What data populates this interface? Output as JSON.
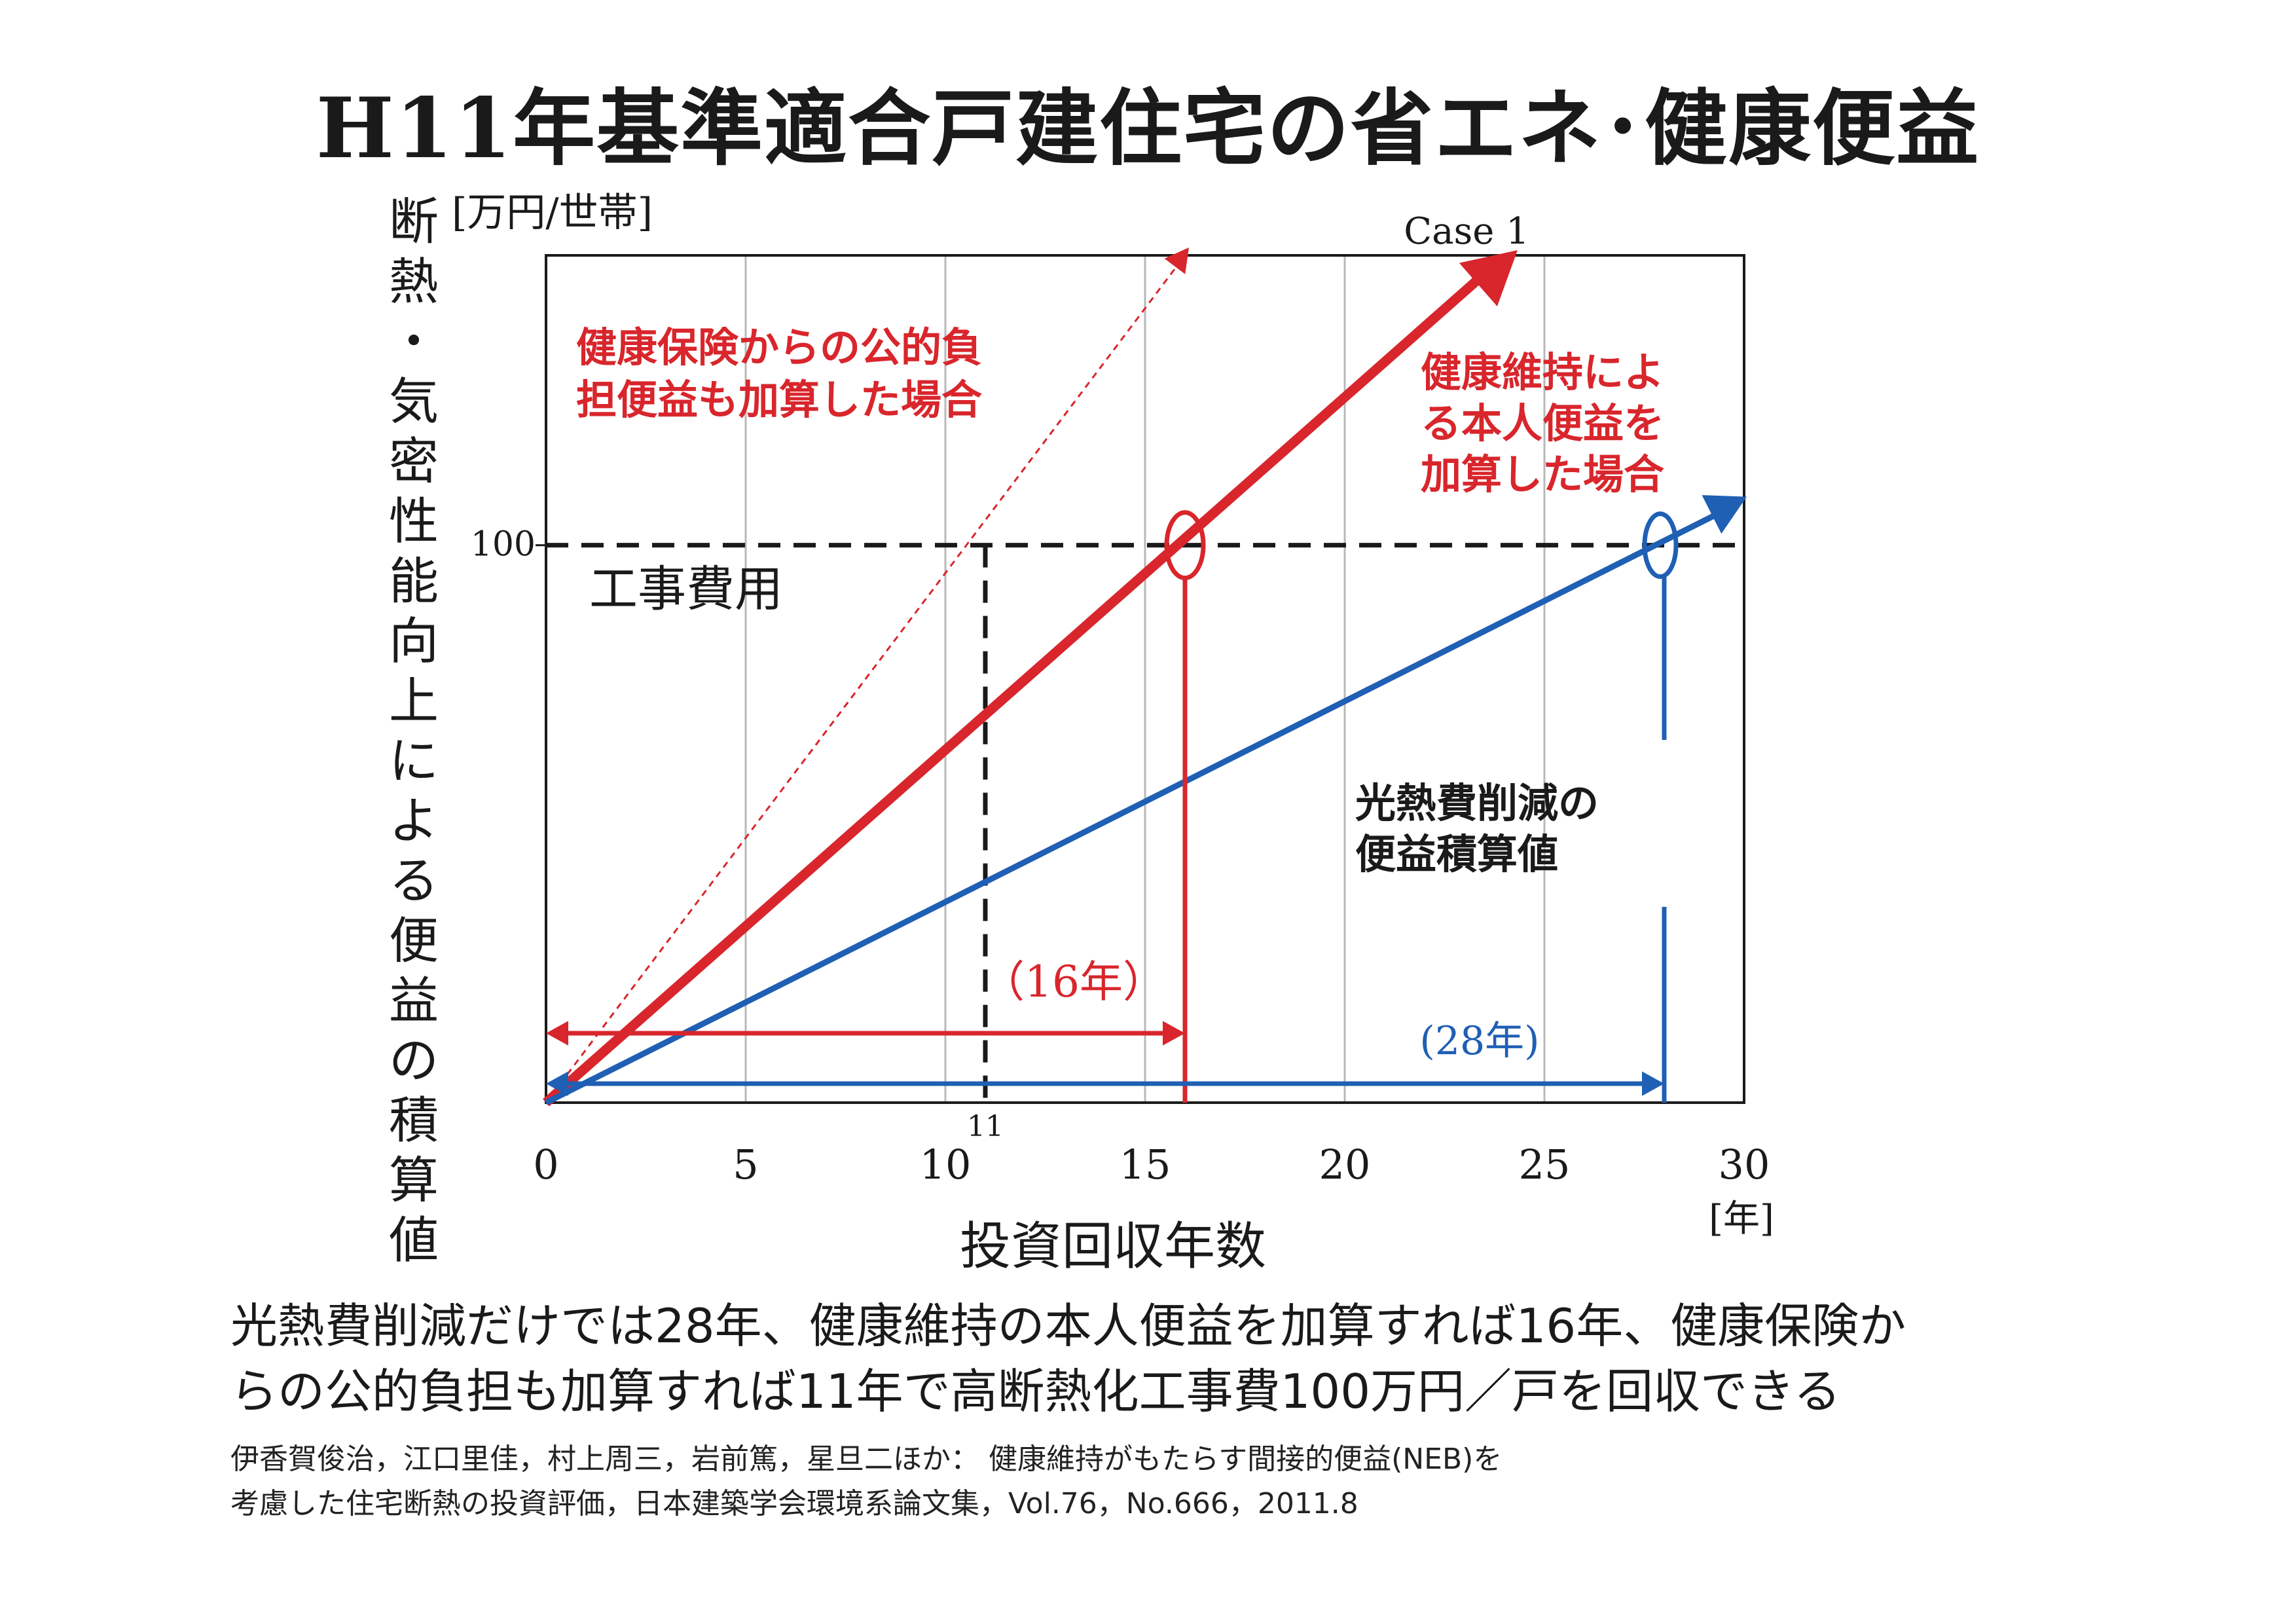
{
  "title": "H11年基準適合戸建住宅の省エネ･健康便益",
  "summary_lines": [
    "光熱費削減だけでは28年、健康維持の本人便益を加算すれば16年、健康保険か",
    "らの公的負担も加算すれば11年で高断熱化工事費100万円／戸を回収できる"
  ],
  "citation_lines": [
    "伊香賀俊治，江口里佳，村上周三，岩前篤，星旦二ほか： 健康維持がもたらす間接的便益(NEB)を",
    "考慮した住宅断熱の投資評価，日本建築学会環境系論文集，Vol.76，No.666，2011.8"
  ],
  "colors": {
    "red": "#d8262c",
    "blue": "#1f5fb4",
    "black": "#1a1a1a",
    "grid": "#b8b8b8"
  },
  "chart_data": {
    "type": "line",
    "xlabel": "投資回収年数",
    "xunit": "[年]",
    "ylabel": "断熱・気密性能向上による便益の積算値",
    "yunit": "[万円/世帯]",
    "xlim": [
      0,
      30
    ],
    "ylim": [
      0,
      152
    ],
    "x_ticks": [
      "0",
      "5",
      "10",
      "15",
      "20",
      "25",
      "30"
    ],
    "extra_x_tick": "11",
    "y_ticks": [
      "100"
    ],
    "grid": "vertical",
    "reference_line": {
      "label": "工事費用",
      "y": 100
    },
    "series": [
      {
        "name": "Case 1",
        "color": "red",
        "style": "dashed-thin",
        "points": [
          [
            0,
            0
          ],
          [
            16,
            152
          ]
        ]
      },
      {
        "name": "",
        "color": "red",
        "style": "thick",
        "points": [
          [
            0,
            0
          ],
          [
            24,
            152
          ]
        ]
      },
      {
        "name": "",
        "color": "blue",
        "style": "medium",
        "points": [
          [
            0,
            0
          ],
          [
            30,
            108
          ]
        ]
      }
    ],
    "annotations": {
      "public_burden": "健康保険からの公的負担便益も加算した場合",
      "public_burden_lines": [
        "健康保険からの公的負",
        "担便益も加算した場合"
      ],
      "personal_benefit_lines": [
        "健康維持によ",
        "る本人便益を",
        "加算した場合"
      ],
      "energy_saving_lines": [
        "光熱費削減の",
        "便益積算値"
      ],
      "years_16": "（16年）",
      "years_28": "(28年)"
    },
    "payback_years": {
      "public": 11,
      "personal": 16,
      "energy": 28
    }
  }
}
